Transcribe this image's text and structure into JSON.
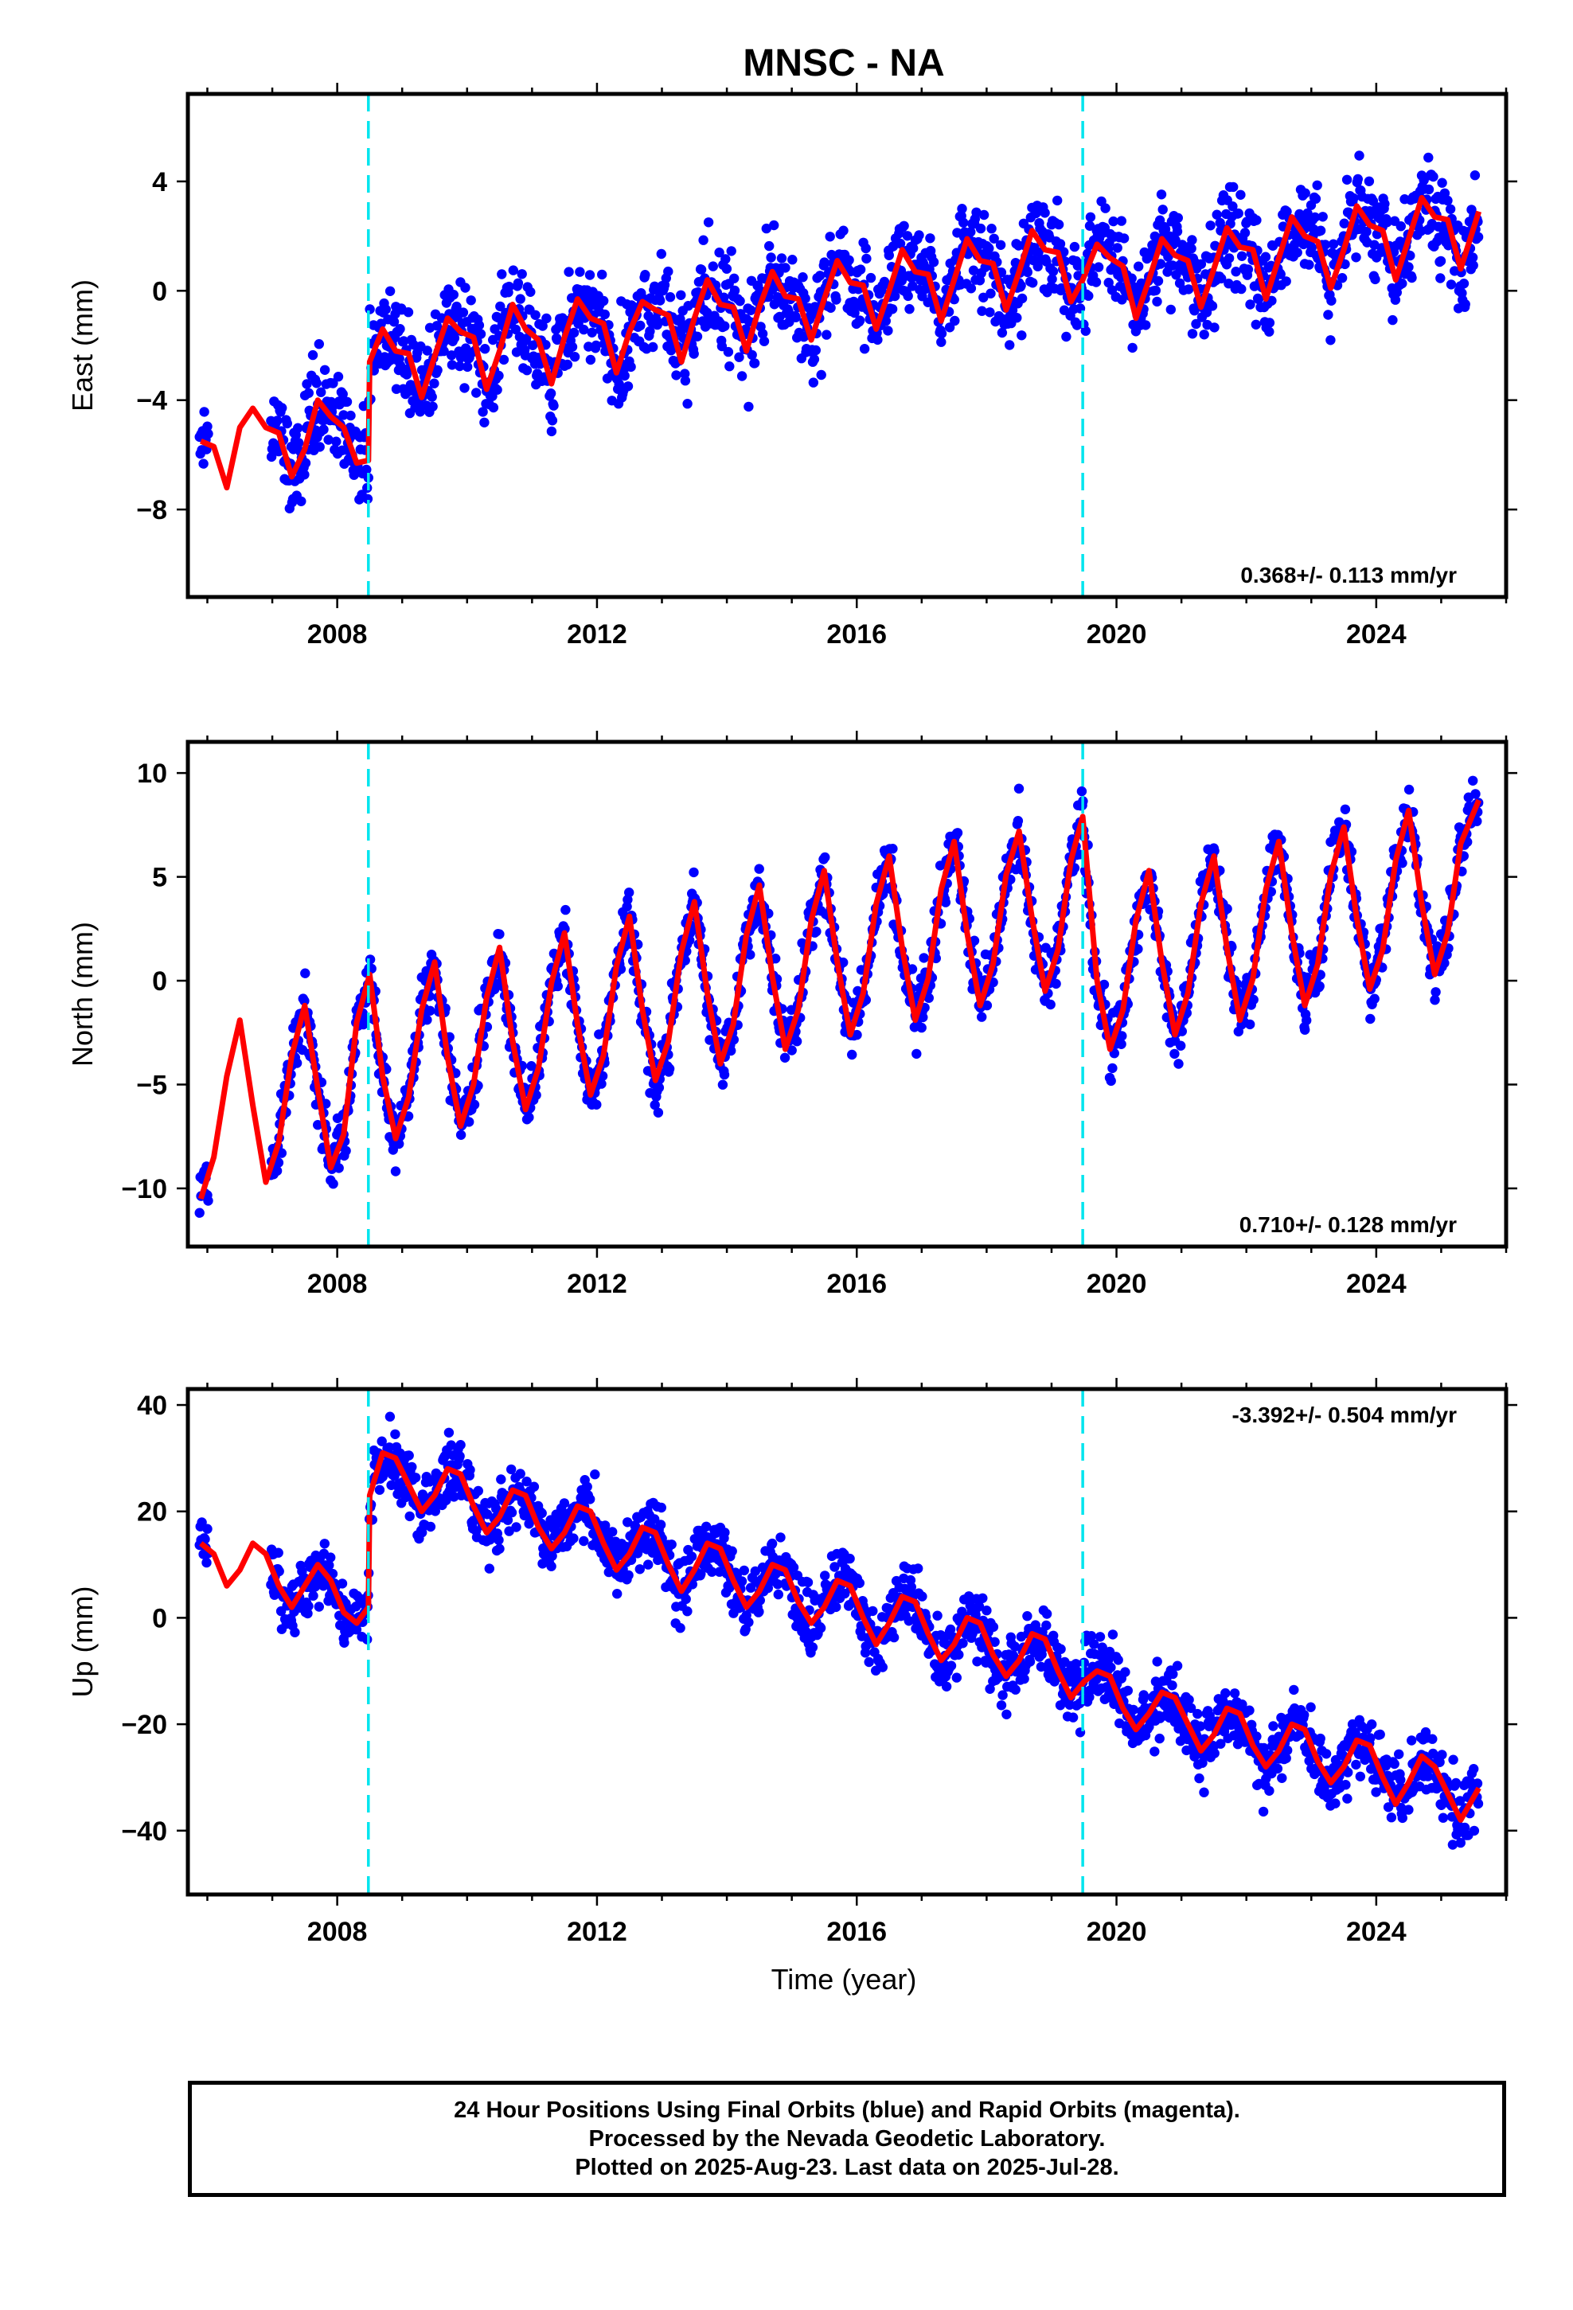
{
  "title": "MNSC - NA",
  "colors": {
    "observations": "#0000ff",
    "model_fit": "#ff0000",
    "offsets": "#00e5ee",
    "frame": "#000000"
  },
  "footer": {
    "line1": "24 Hour Positions Using Final Orbits (blue) and Rapid Orbits (magenta).",
    "line2": "Processed by the Nevada Geodetic Laboratory.",
    "line3": "Plotted on 2025-Aug-23. Last data on 2025-Jul-28."
  },
  "chart_data": [
    {
      "type": "scatter",
      "id": "east",
      "ylabel": "East (mm)",
      "xlabel": "",
      "xlim": [
        2005.7,
        2026.0
      ],
      "ylim": [
        -11.2,
        7.2
      ],
      "xticks": [
        2008,
        2012,
        2016,
        2020,
        2024
      ],
      "yticks": [
        4,
        0,
        -4,
        -8
      ],
      "ytick_labels": [
        "4",
        "0",
        "−4",
        "−8"
      ],
      "rate_text": "0.368+/- 0.113 mm/yr",
      "rate_position": "bottom-right",
      "offsets_x": [
        2008.48,
        2019.48
      ],
      "series": [
        {
          "name": "Final Orbits",
          "style": "points",
          "color": "#0000ff"
        },
        {
          "name": "Model fit",
          "style": "line",
          "color": "#ff0000"
        }
      ],
      "fit_points": [
        [
          2005.9,
          -5.5
        ],
        [
          2006.1,
          -5.7
        ],
        [
          2006.3,
          -7.2
        ],
        [
          2006.5,
          -5.0
        ],
        [
          2006.7,
          -4.3
        ],
        [
          2006.9,
          -5.0
        ],
        [
          2007.1,
          -5.2
        ],
        [
          2007.3,
          -6.8
        ],
        [
          2007.5,
          -5.8
        ],
        [
          2007.7,
          -4.0
        ],
        [
          2007.9,
          -4.6
        ],
        [
          2008.1,
          -5.0
        ],
        [
          2008.3,
          -6.3
        ],
        [
          2008.48,
          -6.2
        ],
        [
          2008.5,
          -2.6
        ],
        [
          2008.7,
          -1.4
        ],
        [
          2008.9,
          -2.2
        ],
        [
          2009.1,
          -2.3
        ],
        [
          2009.3,
          -3.9
        ],
        [
          2009.5,
          -2.4
        ],
        [
          2009.7,
          -1.0
        ],
        [
          2009.9,
          -1.5
        ],
        [
          2010.1,
          -1.7
        ],
        [
          2010.3,
          -3.6
        ],
        [
          2010.5,
          -2.2
        ],
        [
          2010.7,
          -0.5
        ],
        [
          2010.9,
          -1.4
        ],
        [
          2011.1,
          -1.8
        ],
        [
          2011.3,
          -3.4
        ],
        [
          2011.5,
          -1.7
        ],
        [
          2011.7,
          -0.3
        ],
        [
          2011.9,
          -1.0
        ],
        [
          2012.1,
          -1.2
        ],
        [
          2012.3,
          -3.0
        ],
        [
          2012.5,
          -1.5
        ],
        [
          2012.7,
          -0.4
        ],
        [
          2012.9,
          -0.7
        ],
        [
          2013.1,
          -0.9
        ],
        [
          2013.3,
          -2.6
        ],
        [
          2013.5,
          -1.0
        ],
        [
          2013.7,
          0.4
        ],
        [
          2013.9,
          -0.5
        ],
        [
          2014.1,
          -0.6
        ],
        [
          2014.3,
          -2.2
        ],
        [
          2014.5,
          -0.6
        ],
        [
          2014.7,
          0.7
        ],
        [
          2014.9,
          -0.2
        ],
        [
          2015.1,
          -0.3
        ],
        [
          2015.3,
          -1.8
        ],
        [
          2015.5,
          -0.3
        ],
        [
          2015.7,
          1.1
        ],
        [
          2015.9,
          0.3
        ],
        [
          2016.1,
          0.2
        ],
        [
          2016.3,
          -1.4
        ],
        [
          2016.5,
          0.0
        ],
        [
          2016.7,
          1.5
        ],
        [
          2016.9,
          0.7
        ],
        [
          2017.1,
          0.6
        ],
        [
          2017.3,
          -1.1
        ],
        [
          2017.5,
          0.4
        ],
        [
          2017.7,
          1.9
        ],
        [
          2017.9,
          1.1
        ],
        [
          2018.1,
          1.0
        ],
        [
          2018.3,
          -0.7
        ],
        [
          2018.5,
          0.7
        ],
        [
          2018.7,
          2.2
        ],
        [
          2018.9,
          1.5
        ],
        [
          2019.1,
          1.4
        ],
        [
          2019.3,
          -0.4
        ],
        [
          2019.48,
          0.4
        ],
        [
          2019.7,
          1.7
        ],
        [
          2019.9,
          1.2
        ],
        [
          2020.1,
          0.9
        ],
        [
          2020.3,
          -1.0
        ],
        [
          2020.5,
          0.4
        ],
        [
          2020.7,
          1.9
        ],
        [
          2020.9,
          1.3
        ],
        [
          2021.1,
          1.1
        ],
        [
          2021.3,
          -0.6
        ],
        [
          2021.5,
          0.8
        ],
        [
          2021.7,
          2.3
        ],
        [
          2021.9,
          1.6
        ],
        [
          2022.1,
          1.5
        ],
        [
          2022.3,
          -0.3
        ],
        [
          2022.5,
          1.2
        ],
        [
          2022.7,
          2.7
        ],
        [
          2022.9,
          2.0
        ],
        [
          2023.1,
          1.8
        ],
        [
          2023.3,
          0.1
        ],
        [
          2023.5,
          1.5
        ],
        [
          2023.7,
          3.1
        ],
        [
          2023.9,
          2.4
        ],
        [
          2024.1,
          2.2
        ],
        [
          2024.3,
          0.4
        ],
        [
          2024.5,
          1.9
        ],
        [
          2024.7,
          3.4
        ],
        [
          2024.9,
          2.7
        ],
        [
          2025.1,
          2.6
        ],
        [
          2025.3,
          0.8
        ],
        [
          2025.58,
          2.9
        ]
      ]
    },
    {
      "type": "scatter",
      "id": "north",
      "ylabel": "North (mm)",
      "xlabel": "",
      "xlim": [
        2005.7,
        2026.0
      ],
      "ylim": [
        -12.8,
        11.5
      ],
      "xticks": [
        2008,
        2012,
        2016,
        2020,
        2024
      ],
      "yticks": [
        10,
        5,
        0,
        -5,
        -10
      ],
      "ytick_labels": [
        "10",
        "5",
        "0",
        "−5",
        "−10"
      ],
      "rate_text": "0.710+/- 0.128 mm/yr",
      "rate_position": "bottom-right",
      "offsets_x": [
        2008.48,
        2019.48
      ],
      "series": [
        {
          "name": "Final Orbits",
          "style": "points",
          "color": "#0000ff"
        },
        {
          "name": "Model fit",
          "style": "line",
          "color": "#ff0000"
        }
      ],
      "fit_points": [
        [
          2005.9,
          -10.5
        ],
        [
          2006.1,
          -8.5
        ],
        [
          2006.3,
          -4.6
        ],
        [
          2006.5,
          -1.9
        ],
        [
          2006.7,
          -6.0
        ],
        [
          2006.9,
          -9.7
        ],
        [
          2007.1,
          -7.8
        ],
        [
          2007.3,
          -3.6
        ],
        [
          2007.5,
          -1.2
        ],
        [
          2007.7,
          -5.2
        ],
        [
          2007.9,
          -9.0
        ],
        [
          2008.1,
          -7.4
        ],
        [
          2008.3,
          -2.0
        ],
        [
          2008.5,
          0.3
        ],
        [
          2008.7,
          -4.6
        ],
        [
          2008.9,
          -7.6
        ],
        [
          2009.1,
          -5.6
        ],
        [
          2009.3,
          -1.4
        ],
        [
          2009.5,
          0.9
        ],
        [
          2009.7,
          -3.7
        ],
        [
          2009.9,
          -7.0
        ],
        [
          2010.1,
          -5.0
        ],
        [
          2010.3,
          -0.8
        ],
        [
          2010.5,
          1.6
        ],
        [
          2010.7,
          -2.9
        ],
        [
          2010.9,
          -6.2
        ],
        [
          2011.1,
          -4.2
        ],
        [
          2011.3,
          -0.1
        ],
        [
          2011.5,
          2.3
        ],
        [
          2011.7,
          -2.1
        ],
        [
          2011.9,
          -5.5
        ],
        [
          2012.1,
          -3.6
        ],
        [
          2012.3,
          0.7
        ],
        [
          2012.5,
          3.1
        ],
        [
          2012.7,
          -1.4
        ],
        [
          2012.9,
          -4.8
        ],
        [
          2013.1,
          -2.9
        ],
        [
          2013.3,
          1.4
        ],
        [
          2013.5,
          3.8
        ],
        [
          2013.7,
          -0.6
        ],
        [
          2013.9,
          -4.0
        ],
        [
          2014.1,
          -2.1
        ],
        [
          2014.3,
          2.2
        ],
        [
          2014.5,
          4.6
        ],
        [
          2014.7,
          0.2
        ],
        [
          2014.9,
          -3.3
        ],
        [
          2015.1,
          -1.4
        ],
        [
          2015.3,
          2.9
        ],
        [
          2015.5,
          5.3
        ],
        [
          2015.7,
          0.9
        ],
        [
          2015.9,
          -2.6
        ],
        [
          2016.1,
          -0.6
        ],
        [
          2016.3,
          3.7
        ],
        [
          2016.5,
          6.0
        ],
        [
          2016.7,
          1.6
        ],
        [
          2016.9,
          -1.9
        ],
        [
          2017.1,
          0.1
        ],
        [
          2017.3,
          4.4
        ],
        [
          2017.5,
          6.7
        ],
        [
          2017.7,
          2.3
        ],
        [
          2017.9,
          -1.2
        ],
        [
          2018.1,
          0.8
        ],
        [
          2018.3,
          5.1
        ],
        [
          2018.5,
          7.2
        ],
        [
          2018.7,
          3.0
        ],
        [
          2018.9,
          -0.5
        ],
        [
          2019.1,
          1.5
        ],
        [
          2019.3,
          5.8
        ],
        [
          2019.48,
          7.9
        ],
        [
          2019.7,
          0.0
        ],
        [
          2019.9,
          -3.3
        ],
        [
          2020.1,
          -1.4
        ],
        [
          2020.3,
          2.9
        ],
        [
          2020.5,
          5.3
        ],
        [
          2020.7,
          0.9
        ],
        [
          2020.9,
          -2.6
        ],
        [
          2021.1,
          -0.6
        ],
        [
          2021.3,
          3.7
        ],
        [
          2021.5,
          6.0
        ],
        [
          2021.7,
          1.6
        ],
        [
          2021.9,
          -1.9
        ],
        [
          2022.1,
          0.1
        ],
        [
          2022.3,
          4.4
        ],
        [
          2022.5,
          6.7
        ],
        [
          2022.7,
          2.3
        ],
        [
          2022.9,
          -1.2
        ],
        [
          2023.1,
          0.8
        ],
        [
          2023.3,
          5.1
        ],
        [
          2023.5,
          7.4
        ],
        [
          2023.7,
          3.0
        ],
        [
          2023.9,
          -0.4
        ],
        [
          2024.1,
          1.5
        ],
        [
          2024.3,
          5.8
        ],
        [
          2024.5,
          8.2
        ],
        [
          2024.7,
          3.7
        ],
        [
          2024.9,
          0.3
        ],
        [
          2025.1,
          2.3
        ],
        [
          2025.3,
          6.6
        ],
        [
          2025.58,
          8.7
        ]
      ]
    },
    {
      "type": "scatter",
      "id": "up",
      "ylabel": "Up (mm)",
      "xlabel": "Time (year)",
      "xlim": [
        2005.7,
        2026.0
      ],
      "ylim": [
        -52,
        43
      ],
      "xticks": [
        2008,
        2012,
        2016,
        2020,
        2024
      ],
      "yticks": [
        40,
        20,
        0,
        -20,
        -40
      ],
      "ytick_labels": [
        "40",
        "20",
        "0",
        "−20",
        "−40"
      ],
      "rate_text": "-3.392+/- 0.504 mm/yr",
      "rate_position": "top-right",
      "offsets_x": [
        2008.48,
        2019.48
      ],
      "series": [
        {
          "name": "Final Orbits",
          "style": "points",
          "color": "#0000ff"
        },
        {
          "name": "Model fit",
          "style": "line",
          "color": "#ff0000"
        }
      ],
      "fit_points": [
        [
          2005.9,
          14
        ],
        [
          2006.1,
          12
        ],
        [
          2006.3,
          6
        ],
        [
          2006.5,
          9
        ],
        [
          2006.7,
          14
        ],
        [
          2006.9,
          12
        ],
        [
          2007.1,
          6
        ],
        [
          2007.3,
          2
        ],
        [
          2007.5,
          6
        ],
        [
          2007.7,
          10
        ],
        [
          2007.9,
          7
        ],
        [
          2008.1,
          1
        ],
        [
          2008.3,
          -1
        ],
        [
          2008.48,
          2
        ],
        [
          2008.5,
          23
        ],
        [
          2008.7,
          31
        ],
        [
          2008.9,
          30
        ],
        [
          2009.1,
          25
        ],
        [
          2009.3,
          20
        ],
        [
          2009.5,
          23
        ],
        [
          2009.7,
          28
        ],
        [
          2009.9,
          27
        ],
        [
          2010.1,
          21
        ],
        [
          2010.3,
          16
        ],
        [
          2010.5,
          19
        ],
        [
          2010.7,
          24
        ],
        [
          2010.9,
          23
        ],
        [
          2011.1,
          17
        ],
        [
          2011.3,
          13
        ],
        [
          2011.5,
          16
        ],
        [
          2011.7,
          21
        ],
        [
          2011.9,
          20
        ],
        [
          2012.1,
          14
        ],
        [
          2012.3,
          9
        ],
        [
          2012.5,
          12
        ],
        [
          2012.7,
          17
        ],
        [
          2012.9,
          16
        ],
        [
          2013.1,
          10
        ],
        [
          2013.3,
          5
        ],
        [
          2013.5,
          9
        ],
        [
          2013.7,
          14
        ],
        [
          2013.9,
          13
        ],
        [
          2014.1,
          7
        ],
        [
          2014.3,
          2
        ],
        [
          2014.5,
          5
        ],
        [
          2014.7,
          10
        ],
        [
          2014.9,
          9
        ],
        [
          2015.1,
          3
        ],
        [
          2015.3,
          -1
        ],
        [
          2015.5,
          2
        ],
        [
          2015.7,
          7
        ],
        [
          2015.9,
          6
        ],
        [
          2016.1,
          0
        ],
        [
          2016.3,
          -5
        ],
        [
          2016.5,
          -1
        ],
        [
          2016.7,
          4
        ],
        [
          2016.9,
          3
        ],
        [
          2017.1,
          -3
        ],
        [
          2017.3,
          -8
        ],
        [
          2017.5,
          -5
        ],
        [
          2017.7,
          0
        ],
        [
          2017.9,
          -1
        ],
        [
          2018.1,
          -7
        ],
        [
          2018.3,
          -11
        ],
        [
          2018.5,
          -8
        ],
        [
          2018.7,
          -3
        ],
        [
          2018.9,
          -4
        ],
        [
          2019.1,
          -10
        ],
        [
          2019.3,
          -15
        ],
        [
          2019.5,
          -12
        ],
        [
          2019.7,
          -10
        ],
        [
          2019.9,
          -11
        ],
        [
          2020.1,
          -17
        ],
        [
          2020.3,
          -21
        ],
        [
          2020.5,
          -18
        ],
        [
          2020.7,
          -14
        ],
        [
          2020.9,
          -15
        ],
        [
          2021.1,
          -20
        ],
        [
          2021.3,
          -25
        ],
        [
          2021.5,
          -22
        ],
        [
          2021.7,
          -17
        ],
        [
          2021.9,
          -18
        ],
        [
          2022.1,
          -24
        ],
        [
          2022.3,
          -28
        ],
        [
          2022.5,
          -25
        ],
        [
          2022.7,
          -20
        ],
        [
          2022.9,
          -21
        ],
        [
          2023.1,
          -27
        ],
        [
          2023.3,
          -31
        ],
        [
          2023.5,
          -28
        ],
        [
          2023.7,
          -23
        ],
        [
          2023.9,
          -24
        ],
        [
          2024.1,
          -30
        ],
        [
          2024.3,
          -35
        ],
        [
          2024.5,
          -31
        ],
        [
          2024.7,
          -26
        ],
        [
          2024.9,
          -28
        ],
        [
          2025.1,
          -33
        ],
        [
          2025.3,
          -38
        ],
        [
          2025.58,
          -32
        ]
      ]
    }
  ]
}
